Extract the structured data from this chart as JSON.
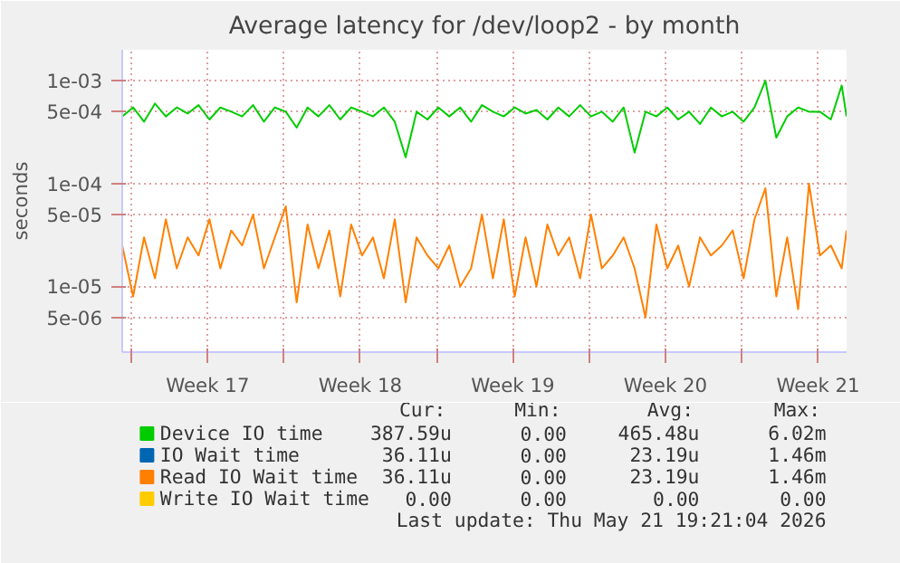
{
  "chart_data": {
    "type": "line",
    "title": "Average latency for /dev/loop2 - by month",
    "ylabel": "seconds",
    "log": true,
    "grid": true,
    "legend": "bottom",
    "line_style": "solid",
    "marker": "none",
    "xlim": [
      "2026-04-18T14:00",
      "2026-05-21T19:21"
    ],
    "xticks": [
      {
        "value": "2026-04-19T00:00",
        "label": null
      },
      {
        "value": "2026-04-22T12:00",
        "label": "Week 17"
      },
      {
        "value": "2026-04-26T00:00",
        "label": null
      },
      {
        "value": "2026-04-29T12:00",
        "label": "Week 18"
      },
      {
        "value": "2026-05-03T00:00",
        "label": null
      },
      {
        "value": "2026-05-06T12:00",
        "label": "Week 19"
      },
      {
        "value": "2026-05-10T00:00",
        "label": null
      },
      {
        "value": "2026-05-13T12:00",
        "label": "Week 20"
      },
      {
        "value": "2026-05-17T00:00",
        "label": null
      },
      {
        "value": "2026-05-20T12:00",
        "label": "Week 21"
      }
    ],
    "ylim": [
      2.3e-06,
      0.002
    ],
    "yticks": [
      {
        "value": 5e-06,
        "label": "5e-06"
      },
      {
        "value": 1e-05,
        "label": "1e-05"
      },
      {
        "value": 5e-05,
        "label": "5e-05"
      },
      {
        "value": 0.0001,
        "label": "1e-04"
      },
      {
        "value": 0.0005,
        "label": "5e-04"
      },
      {
        "value": 0.001,
        "label": "1e-03"
      }
    ],
    "x": [
      "2026-04-18T14:00",
      "2026-04-19T02:00",
      "2026-04-19T14:00",
      "2026-04-20T02:00",
      "2026-04-20T14:00",
      "2026-04-21T02:00",
      "2026-04-21T14:00",
      "2026-04-22T02:00",
      "2026-04-22T14:00",
      "2026-04-23T02:00",
      "2026-04-23T14:00",
      "2026-04-24T02:00",
      "2026-04-24T14:00",
      "2026-04-25T02:00",
      "2026-04-25T14:00",
      "2026-04-26T02:00",
      "2026-04-26T14:00",
      "2026-04-27T02:00",
      "2026-04-27T14:00",
      "2026-04-28T02:00",
      "2026-04-28T14:00",
      "2026-04-29T02:00",
      "2026-04-29T14:00",
      "2026-04-30T02:00",
      "2026-04-30T14:00",
      "2026-05-01T02:00",
      "2026-05-01T14:00",
      "2026-05-02T02:00",
      "2026-05-02T14:00",
      "2026-05-03T02:00",
      "2026-05-03T14:00",
      "2026-05-04T02:00",
      "2026-05-04T14:00",
      "2026-05-05T02:00",
      "2026-05-05T14:00",
      "2026-05-06T02:00",
      "2026-05-06T14:00",
      "2026-05-07T02:00",
      "2026-05-07T14:00",
      "2026-05-08T02:00",
      "2026-05-08T14:00",
      "2026-05-09T02:00",
      "2026-05-09T14:00",
      "2026-05-10T02:00",
      "2026-05-10T14:00",
      "2026-05-11T02:00",
      "2026-05-11T14:00",
      "2026-05-12T02:00",
      "2026-05-12T14:00",
      "2026-05-13T02:00",
      "2026-05-13T14:00",
      "2026-05-14T02:00",
      "2026-05-14T14:00",
      "2026-05-15T02:00",
      "2026-05-15T14:00",
      "2026-05-16T02:00",
      "2026-05-16T14:00",
      "2026-05-17T02:00",
      "2026-05-17T14:00",
      "2026-05-18T02:00",
      "2026-05-18T14:00",
      "2026-05-19T02:00",
      "2026-05-19T14:00",
      "2026-05-20T02:00",
      "2026-05-20T14:00",
      "2026-05-21T02:00",
      "2026-05-21T14:00",
      "2026-05-21T19:21"
    ],
    "series": [
      {
        "name": "Device IO time",
        "color": "#00cc00",
        "values": [
          0.00045,
          0.00055,
          0.0004,
          0.0006,
          0.00045,
          0.00055,
          0.00048,
          0.00058,
          0.00042,
          0.00055,
          0.0005,
          0.00045,
          0.00058,
          0.0004,
          0.00055,
          0.0005,
          0.00035,
          0.00055,
          0.00045,
          0.00058,
          0.00042,
          0.00055,
          0.0005,
          0.00045,
          0.00055,
          0.0004,
          0.00018,
          0.0005,
          0.00042,
          0.00055,
          0.00045,
          0.00055,
          0.0004,
          0.00058,
          0.0005,
          0.00045,
          0.00055,
          0.00048,
          0.00052,
          0.00042,
          0.00055,
          0.00045,
          0.00058,
          0.00045,
          0.0005,
          0.0004,
          0.00055,
          0.0002,
          0.0005,
          0.00045,
          0.00055,
          0.00042,
          0.0005,
          0.00038,
          0.00055,
          0.00045,
          0.0005,
          0.0004,
          0.00055,
          0.001,
          0.00028,
          0.00045,
          0.00055,
          0.0005,
          0.0005,
          0.00042,
          0.0009,
          0.00045
        ]
      },
      {
        "name": "IO Wait time",
        "color": "#0066b3",
        "values": [
          null,
          null,
          null,
          null,
          null,
          null,
          null,
          null,
          null,
          null,
          null,
          null,
          null,
          null,
          null,
          null,
          null,
          null,
          null,
          null,
          null,
          null,
          null,
          null,
          null,
          null,
          null,
          null,
          null,
          null,
          null,
          null,
          null,
          null,
          null,
          null,
          null,
          null,
          null,
          null,
          null,
          null,
          null,
          null,
          null,
          null,
          null,
          null,
          null,
          null,
          null,
          null,
          null,
          null,
          null,
          null,
          null,
          null,
          null,
          null,
          null,
          null,
          null,
          null,
          null,
          null,
          null,
          null
        ]
      },
      {
        "name": "Read IO Wait time",
        "color": "#ff8000",
        "values": [
          2.5e-05,
          8e-06,
          3e-05,
          1.2e-05,
          4.5e-05,
          1.5e-05,
          3e-05,
          2e-05,
          4.5e-05,
          1.5e-05,
          3.5e-05,
          2.5e-05,
          5e-05,
          1.5e-05,
          3e-05,
          6e-05,
          7e-06,
          4e-05,
          1.5e-05,
          3.5e-05,
          8e-06,
          4e-05,
          2e-05,
          3e-05,
          1.2e-05,
          4.5e-05,
          7e-06,
          3e-05,
          2e-05,
          1.5e-05,
          2.5e-05,
          1e-05,
          1.5e-05,
          5e-05,
          1.2e-05,
          4.5e-05,
          8e-06,
          3e-05,
          1e-05,
          4e-05,
          2e-05,
          3e-05,
          1.2e-05,
          5e-05,
          1.5e-05,
          2e-05,
          3e-05,
          1.5e-05,
          5e-06,
          4e-05,
          1.5e-05,
          2.5e-05,
          1e-05,
          3e-05,
          2e-05,
          2.5e-05,
          3.5e-05,
          1.2e-05,
          4.5e-05,
          9e-05,
          8e-06,
          3e-05,
          6e-06,
          0.0001,
          2e-05,
          2.5e-05,
          1.5e-05,
          3.5e-05
        ]
      },
      {
        "name": "Write IO Wait time",
        "color": "#ffcc00",
        "values": [
          null,
          null,
          null,
          null,
          null,
          null,
          null,
          null,
          null,
          null,
          null,
          null,
          null,
          null,
          null,
          null,
          null,
          null,
          null,
          null,
          null,
          null,
          null,
          null,
          null,
          null,
          null,
          null,
          null,
          null,
          null,
          null,
          null,
          null,
          null,
          null,
          null,
          null,
          null,
          null,
          null,
          null,
          null,
          null,
          null,
          null,
          null,
          null,
          null,
          null,
          null,
          null,
          null,
          null,
          null,
          null,
          null,
          null,
          null,
          null,
          null,
          null,
          null,
          null,
          null,
          null,
          null,
          null
        ]
      }
    ],
    "annotations": [
      "Cur:",
      "Min:",
      "Avg:",
      "Max:",
      "387.59u",
      "0.00",
      "465.48u",
      "6.02m",
      "36.11u",
      "0.00",
      "23.19u",
      "1.46m",
      "36.11u",
      "0.00",
      "23.19u",
      "1.46m",
      "0.00",
      "0.00",
      "0.00",
      "0.00",
      "Last update: Thu May 21 19:21:04 2026"
    ]
  }
}
